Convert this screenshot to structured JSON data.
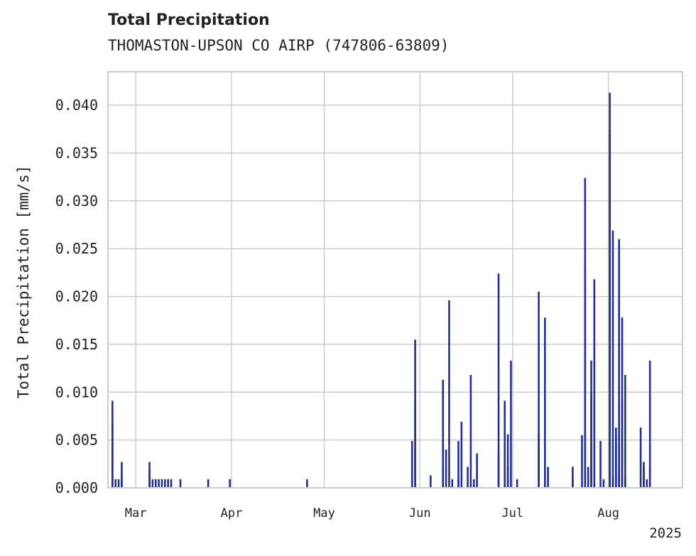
{
  "chart_data": {
    "type": "bar",
    "title": "Total Precipitation",
    "subtitle": "THOMASTON-UPSON CO AIRP (747806-63809)",
    "ylabel": "Total Precipitation [mm/s]",
    "xlabel": "",
    "year_label": "2025",
    "ylim": [
      0,
      0.0435
    ],
    "xlim": [
      "2025-02-20",
      "2025-08-25"
    ],
    "grid": true,
    "color": "#233092",
    "yticks": [
      0.0,
      0.005,
      0.01,
      0.015,
      0.02,
      0.025,
      0.03,
      0.035,
      0.04
    ],
    "ytick_labels": [
      "0.000",
      "0.005",
      "0.010",
      "0.015",
      "0.020",
      "0.025",
      "0.030",
      "0.035",
      "0.040"
    ],
    "xticks": [
      {
        "date": "2025-03-01",
        "label": "Mar"
      },
      {
        "date": "2025-04-01",
        "label": "Apr"
      },
      {
        "date": "2025-05-01",
        "label": "May"
      },
      {
        "date": "2025-06-01",
        "label": "Jun"
      },
      {
        "date": "2025-07-01",
        "label": "Jul"
      },
      {
        "date": "2025-08-01",
        "label": "Aug"
      }
    ],
    "series": [
      {
        "name": "Total Precipitation",
        "points": [
          [
            "2025-02-21",
            0.0069
          ],
          [
            "2025-02-21",
            0.0091
          ],
          [
            "2025-02-22",
            0.0009
          ],
          [
            "2025-02-23",
            0.0009
          ],
          [
            "2025-02-24",
            0.0009
          ],
          [
            "2025-02-24",
            0.0027
          ],
          [
            "2025-03-05",
            0.0027
          ],
          [
            "2025-03-05",
            0.0018
          ],
          [
            "2025-03-06",
            0.0009
          ],
          [
            "2025-03-07",
            0.0009
          ],
          [
            "2025-03-08",
            0.0009
          ],
          [
            "2025-03-09",
            0.0009
          ],
          [
            "2025-03-10",
            0.0009
          ],
          [
            "2025-03-11",
            0.0009
          ],
          [
            "2025-03-12",
            0.0009
          ],
          [
            "2025-03-15",
            0.0009
          ],
          [
            "2025-03-24",
            0.0009
          ],
          [
            "2025-03-31",
            0.0009
          ],
          [
            "2025-04-25",
            0.0009
          ],
          [
            "2025-05-29",
            0.0049
          ],
          [
            "2025-05-30",
            0.0155
          ],
          [
            "2025-05-30",
            0.0091
          ],
          [
            "2025-06-04",
            0.0013
          ],
          [
            "2025-06-08",
            0.0113
          ],
          [
            "2025-06-08",
            0.0022
          ],
          [
            "2025-06-09",
            0.004
          ],
          [
            "2025-06-10",
            0.0196
          ],
          [
            "2025-06-11",
            0.0009
          ],
          [
            "2025-06-13",
            0.0049
          ],
          [
            "2025-06-13",
            0.0009
          ],
          [
            "2025-06-14",
            0.0069
          ],
          [
            "2025-06-16",
            0.0022
          ],
          [
            "2025-06-17",
            0.0118
          ],
          [
            "2025-06-18",
            0.0009
          ],
          [
            "2025-06-19",
            0.0036
          ],
          [
            "2025-06-26",
            0.0224
          ],
          [
            "2025-06-26",
            0.0036
          ],
          [
            "2025-06-28",
            0.0091
          ],
          [
            "2025-06-29",
            0.0056
          ],
          [
            "2025-06-29",
            0.0022
          ],
          [
            "2025-06-30",
            0.0133
          ],
          [
            "2025-07-02",
            0.0009
          ],
          [
            "2025-07-09",
            0.0205
          ],
          [
            "2025-07-09",
            0.0056
          ],
          [
            "2025-07-11",
            0.0178
          ],
          [
            "2025-07-11",
            0.0009
          ],
          [
            "2025-07-12",
            0.0022
          ],
          [
            "2025-07-20",
            0.0022
          ],
          [
            "2025-07-20",
            0.0009
          ],
          [
            "2025-07-23",
            0.0055
          ],
          [
            "2025-07-24",
            0.0324
          ],
          [
            "2025-07-24",
            0.0231
          ],
          [
            "2025-07-25",
            0.0022
          ],
          [
            "2025-07-26",
            0.01
          ],
          [
            "2025-07-26",
            0.0133
          ],
          [
            "2025-07-27",
            0.0218
          ],
          [
            "2025-07-29",
            0.0049
          ],
          [
            "2025-07-30",
            0.0009
          ],
          [
            "2025-08-01",
            0.0413
          ],
          [
            "2025-08-01",
            0.0369
          ],
          [
            "2025-08-02",
            0.0013
          ],
          [
            "2025-08-02",
            0.0269
          ],
          [
            "2025-08-03",
            0.0056
          ],
          [
            "2025-08-03",
            0.0063
          ],
          [
            "2025-08-04",
            0.026
          ],
          [
            "2025-08-04",
            0.0022
          ],
          [
            "2025-08-05",
            0.0178
          ],
          [
            "2025-08-05",
            0.0091
          ],
          [
            "2025-08-06",
            0.0118
          ],
          [
            "2025-08-06",
            0.0009
          ],
          [
            "2025-08-11",
            0.0063
          ],
          [
            "2025-08-12",
            0.0022
          ],
          [
            "2025-08-12",
            0.0027
          ],
          [
            "2025-08-13",
            0.0009
          ],
          [
            "2025-08-14",
            0.0133
          ],
          [
            "2025-08-14",
            0.0022
          ]
        ]
      }
    ]
  }
}
